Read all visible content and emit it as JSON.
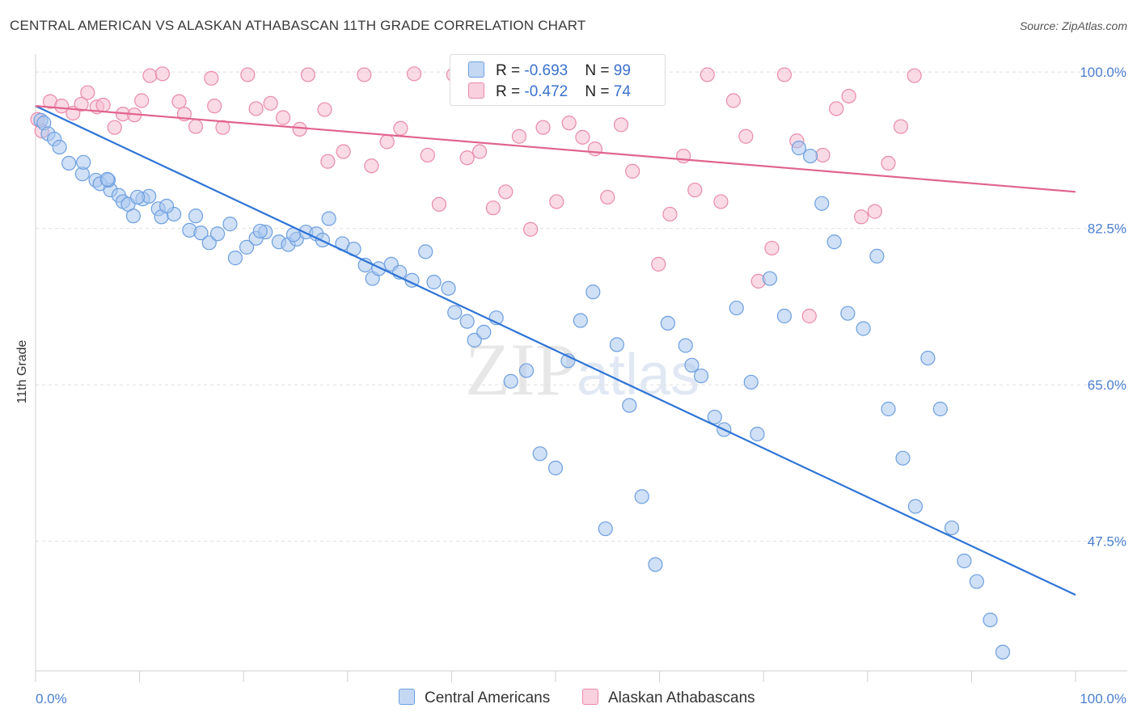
{
  "title": "CENTRAL AMERICAN VS ALASKAN ATHABASCAN 11TH GRADE CORRELATION CHART",
  "source": "Source: ZipAtlas.com",
  "watermark": "ZIPatlas",
  "legend": {
    "rows": [
      {
        "r_label": "R = ",
        "r_value": "-0.693",
        "n_label": "N = ",
        "n_value": "99",
        "color": "#a9c7ef",
        "border": "#6d9fe0"
      },
      {
        "r_label": "R = ",
        "r_value": "-0.472",
        "n_label": "N = ",
        "n_value": "74",
        "color": "#f6bcd0",
        "border": "#e98aab"
      }
    ]
  },
  "bottom_legend": {
    "series1": "Central Americans",
    "series2": "Alaskan Athabascans"
  },
  "chart_data": {
    "type": "scatter",
    "title": "CENTRAL AMERICAN VS ALASKAN ATHABASCAN 11TH GRADE CORRELATION CHART",
    "xlabel": "",
    "ylabel": "11th Grade",
    "xlim": [
      0,
      100
    ],
    "ylim": [
      33.0,
      102.0
    ],
    "x_tick_labels": [
      {
        "value": 0,
        "label": "0.0%"
      },
      {
        "value": 100,
        "label": "100.0%"
      }
    ],
    "y_tick_labels": [
      {
        "value": 100.0,
        "label": "100.0%"
      },
      {
        "value": 82.5,
        "label": "82.5%"
      },
      {
        "value": 65.0,
        "label": "65.0%"
      },
      {
        "value": 47.5,
        "label": "47.5%"
      }
    ],
    "grid": true,
    "legend_position": "top-center",
    "series": [
      {
        "name": "Central Americans",
        "color": "#a9c7ef",
        "stroke": "#6d9fe0",
        "line_color": "#2e74d6",
        "trend": [
          [
            0,
            96.2
          ],
          [
            100,
            41.5
          ]
        ],
        "points": [
          [
            0.5,
            94.6
          ],
          [
            0.8,
            94.3
          ],
          [
            1.2,
            93.1
          ],
          [
            1.8,
            92.5
          ],
          [
            2.3,
            91.6
          ],
          [
            3.2,
            89.8
          ],
          [
            4.5,
            88.6
          ],
          [
            5.8,
            87.9
          ],
          [
            6.2,
            87.5
          ],
          [
            7.2,
            86.8
          ],
          [
            7.0,
            87.9
          ],
          [
            8.0,
            86.2
          ],
          [
            8.4,
            85.5
          ],
          [
            8.9,
            85.2
          ],
          [
            9.4,
            83.9
          ],
          [
            10.3,
            85.8
          ],
          [
            10.9,
            86.1
          ],
          [
            11.8,
            84.7
          ],
          [
            12.1,
            83.8
          ],
          [
            13.3,
            84.1
          ],
          [
            14.8,
            82.3
          ],
          [
            15.9,
            82.0
          ],
          [
            16.7,
            80.9
          ],
          [
            17.5,
            81.9
          ],
          [
            19.2,
            79.2
          ],
          [
            20.3,
            80.4
          ],
          [
            21.2,
            81.4
          ],
          [
            22.1,
            82.1
          ],
          [
            23.4,
            81.0
          ],
          [
            24.3,
            80.7
          ],
          [
            25.1,
            81.3
          ],
          [
            26.0,
            82.1
          ],
          [
            27.0,
            81.9
          ],
          [
            28.2,
            83.6
          ],
          [
            29.5,
            80.8
          ],
          [
            30.6,
            80.2
          ],
          [
            31.7,
            78.4
          ],
          [
            32.4,
            76.9
          ],
          [
            33.0,
            78.0
          ],
          [
            34.2,
            78.5
          ],
          [
            35.0,
            77.6
          ],
          [
            36.2,
            76.7
          ],
          [
            37.5,
            79.9
          ],
          [
            38.3,
            76.5
          ],
          [
            39.7,
            75.8
          ],
          [
            40.3,
            73.1
          ],
          [
            41.5,
            72.1
          ],
          [
            42.2,
            70.0
          ],
          [
            43.1,
            70.9
          ],
          [
            44.3,
            72.5
          ],
          [
            45.7,
            65.4
          ],
          [
            47.2,
            66.6
          ],
          [
            48.5,
            57.3
          ],
          [
            50.0,
            55.7
          ],
          [
            51.2,
            67.7
          ],
          [
            52.4,
            72.2
          ],
          [
            53.6,
            75.4
          ],
          [
            54.8,
            48.9
          ],
          [
            55.9,
            69.5
          ],
          [
            57.1,
            62.7
          ],
          [
            58.3,
            52.5
          ],
          [
            59.6,
            44.9
          ],
          [
            60.8,
            71.9
          ],
          [
            62.5,
            69.4
          ],
          [
            63.1,
            67.2
          ],
          [
            64.0,
            66.0
          ],
          [
            65.3,
            61.4
          ],
          [
            66.2,
            60.0
          ],
          [
            67.4,
            73.6
          ],
          [
            68.8,
            65.3
          ],
          [
            69.4,
            59.5
          ],
          [
            70.6,
            76.9
          ],
          [
            72.0,
            72.7
          ],
          [
            73.4,
            91.5
          ],
          [
            74.5,
            90.6
          ],
          [
            75.6,
            85.3
          ],
          [
            76.8,
            81.0
          ],
          [
            78.1,
            73.0
          ],
          [
            79.6,
            71.3
          ],
          [
            80.9,
            79.4
          ],
          [
            82.0,
            62.3
          ],
          [
            83.4,
            56.8
          ],
          [
            84.6,
            51.4
          ],
          [
            85.8,
            68.0
          ],
          [
            87.0,
            62.3
          ],
          [
            88.1,
            49.0
          ],
          [
            89.3,
            45.3
          ],
          [
            90.5,
            43.0
          ],
          [
            91.8,
            38.7
          ],
          [
            93.0,
            35.1
          ],
          [
            4.6,
            89.9
          ],
          [
            6.9,
            88.0
          ],
          [
            9.8,
            86.0
          ],
          [
            12.6,
            85.0
          ],
          [
            15.4,
            83.9
          ],
          [
            18.7,
            83.0
          ],
          [
            21.6,
            82.2
          ],
          [
            24.8,
            81.8
          ],
          [
            27.6,
            81.2
          ]
        ]
      },
      {
        "name": "Alaskan Athabascans",
        "color": "#f6bcd0",
        "stroke": "#e98aab",
        "line_color": "#e0648e",
        "trend": [
          [
            0,
            96.2
          ],
          [
            100,
            86.6
          ]
        ],
        "points": [
          [
            0.2,
            94.7
          ],
          [
            0.6,
            93.4
          ],
          [
            1.4,
            96.7
          ],
          [
            2.5,
            96.2
          ],
          [
            3.6,
            95.4
          ],
          [
            4.4,
            96.4
          ],
          [
            5.0,
            97.7
          ],
          [
            5.9,
            96.1
          ],
          [
            6.5,
            96.3
          ],
          [
            7.6,
            93.8
          ],
          [
            8.4,
            95.3
          ],
          [
            9.5,
            95.2
          ],
          [
            10.2,
            96.8
          ],
          [
            11.0,
            99.6
          ],
          [
            12.2,
            99.8
          ],
          [
            13.8,
            96.7
          ],
          [
            14.3,
            95.3
          ],
          [
            15.4,
            93.9
          ],
          [
            16.9,
            99.3
          ],
          [
            17.2,
            96.2
          ],
          [
            18.0,
            93.8
          ],
          [
            20.4,
            99.7
          ],
          [
            21.2,
            95.9
          ],
          [
            22.6,
            96.5
          ],
          [
            23.8,
            94.9
          ],
          [
            25.4,
            93.6
          ],
          [
            26.2,
            99.7
          ],
          [
            27.8,
            95.8
          ],
          [
            28.1,
            90.0
          ],
          [
            29.6,
            91.1
          ],
          [
            31.6,
            99.7
          ],
          [
            32.3,
            89.5
          ],
          [
            33.8,
            92.2
          ],
          [
            35.1,
            93.7
          ],
          [
            36.4,
            99.8
          ],
          [
            37.7,
            90.7
          ],
          [
            38.8,
            85.2
          ],
          [
            40.2,
            99.7
          ],
          [
            41.5,
            90.4
          ],
          [
            42.7,
            91.1
          ],
          [
            44.0,
            84.8
          ],
          [
            45.2,
            86.6
          ],
          [
            46.5,
            92.8
          ],
          [
            47.6,
            82.4
          ],
          [
            48.8,
            93.8
          ],
          [
            50.1,
            85.5
          ],
          [
            51.3,
            94.3
          ],
          [
            52.6,
            92.7
          ],
          [
            53.8,
            91.4
          ],
          [
            55.0,
            86.0
          ],
          [
            56.3,
            94.1
          ],
          [
            57.4,
            88.9
          ],
          [
            58.7,
            99.8
          ],
          [
            59.9,
            78.5
          ],
          [
            61.0,
            84.1
          ],
          [
            62.3,
            90.6
          ],
          [
            63.4,
            86.8
          ],
          [
            64.6,
            99.7
          ],
          [
            65.9,
            85.5
          ],
          [
            67.1,
            96.8
          ],
          [
            68.3,
            92.8
          ],
          [
            69.5,
            76.6
          ],
          [
            70.8,
            80.3
          ],
          [
            72.0,
            99.7
          ],
          [
            73.2,
            92.3
          ],
          [
            74.4,
            72.7
          ],
          [
            75.7,
            90.7
          ],
          [
            77.0,
            95.9
          ],
          [
            78.2,
            97.3
          ],
          [
            79.4,
            83.8
          ],
          [
            80.7,
            84.4
          ],
          [
            82.0,
            89.8
          ],
          [
            83.2,
            93.9
          ],
          [
            84.5,
            99.6
          ]
        ]
      }
    ]
  }
}
